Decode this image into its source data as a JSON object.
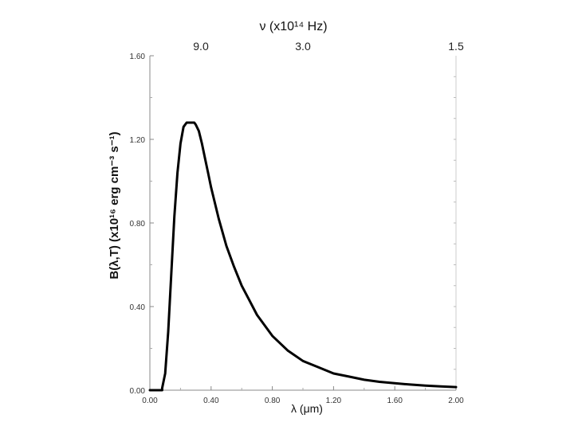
{
  "chart_data": {
    "type": "line",
    "xlabel": "λ (μm)",
    "ylabel": "B(λ,T) (x10¹⁶ erg cm⁻³ s⁻¹)",
    "top_axis_label": "ν (x10¹⁴ Hz)",
    "xlim": [
      0,
      2.0
    ],
    "ylim": [
      0,
      1.6
    ],
    "x_ticks": [
      "0.00",
      "0.40",
      "0.80",
      "1.20",
      "1.60",
      "2.00"
    ],
    "y_ticks": [
      "0.00",
      "0.40",
      "0.80",
      "1.20",
      "1.60"
    ],
    "top_ticks": [
      "9.0",
      "3.0",
      "1.5"
    ],
    "grid": false,
    "series": [
      {
        "x": [
          0.08,
          0.1,
          0.12,
          0.14,
          0.16,
          0.18,
          0.2,
          0.22,
          0.24,
          0.26,
          0.28,
          0.29,
          0.3,
          0.32,
          0.34,
          0.36,
          0.38,
          0.4,
          0.45,
          0.5,
          0.55,
          0.6,
          0.65,
          0.7,
          0.8,
          0.9,
          1.0,
          1.1,
          1.2,
          1.3,
          1.4,
          1.5,
          1.6,
          1.7,
          1.8,
          1.9,
          2.0
        ],
        "y": [
          0.01,
          0.08,
          0.28,
          0.56,
          0.83,
          1.04,
          1.18,
          1.26,
          1.28,
          1.28,
          1.28,
          1.28,
          1.27,
          1.24,
          1.18,
          1.11,
          1.04,
          0.97,
          0.82,
          0.69,
          0.59,
          0.5,
          0.43,
          0.36,
          0.26,
          0.19,
          0.14,
          0.11,
          0.08,
          0.065,
          0.05,
          0.04,
          0.033,
          0.027,
          0.022,
          0.018,
          0.015
        ]
      }
    ]
  }
}
